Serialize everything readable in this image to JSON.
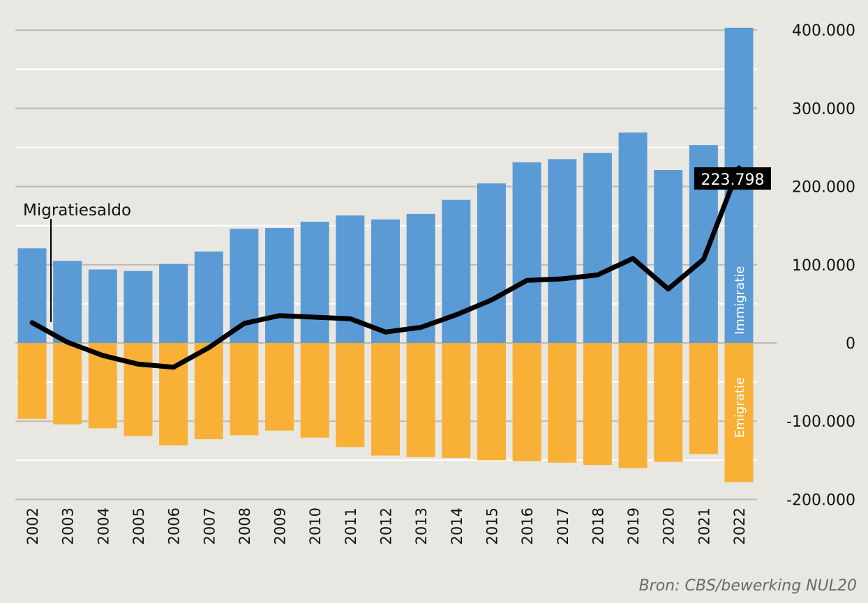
{
  "colors": {
    "background": "#e9e7e2",
    "immigration": "#5b9bd5",
    "emigration": "#f8b136",
    "balance_line": "#000000",
    "grid": "#ffffff",
    "axis_grid": "#bdbab4"
  },
  "chart_data": {
    "type": "bar",
    "title": "",
    "xlabel": "",
    "ylabel": "",
    "ylim": [
      -200000,
      400000
    ],
    "y_ticks": [
      400000,
      300000,
      200000,
      100000,
      0,
      -100000,
      -200000
    ],
    "y_tick_labels": [
      "400.000",
      "300.000",
      "200.000",
      "100.000",
      "0",
      "-100.000",
      "-200.000"
    ],
    "categories": [
      "2002",
      "2003",
      "2004",
      "2005",
      "2006",
      "2007",
      "2008",
      "2009",
      "2010",
      "2011",
      "2012",
      "2013",
      "2014",
      "2015",
      "2016",
      "2017",
      "2018",
      "2019",
      "2020",
      "2021",
      "2022"
    ],
    "series": [
      {
        "name": "Immigratie",
        "kind": "bar",
        "values": [
          121000,
          105000,
          94000,
          92000,
          101000,
          117000,
          146000,
          147000,
          155000,
          163000,
          158000,
          165000,
          183000,
          204000,
          231000,
          235000,
          243000,
          269000,
          221000,
          253000,
          403000
        ]
      },
      {
        "name": "Emigratie",
        "kind": "bar",
        "values": [
          -97000,
          -104000,
          -109000,
          -119000,
          -131000,
          -123000,
          -118000,
          -112000,
          -121000,
          -133000,
          -144000,
          -146000,
          -147000,
          -150000,
          -151000,
          -153000,
          -156000,
          -160000,
          -152000,
          -142000,
          -178000
        ]
      },
      {
        "name": "Migratiesaldo",
        "kind": "line",
        "values": [
          26000,
          1000,
          -16000,
          -27000,
          -31000,
          -6000,
          25000,
          35000,
          33000,
          31000,
          14000,
          20000,
          36000,
          55000,
          80000,
          82000,
          87000,
          108000,
          69000,
          107000,
          223798
        ]
      }
    ],
    "callout": {
      "year": "2022",
      "label": "223.798"
    },
    "legend": {
      "immigration_label": "Immigratie",
      "emigration_label": "Emigratie"
    },
    "annotations": {
      "line_label": "Migratiesaldo"
    },
    "grid": true
  },
  "source": "Bron: CBS/bewerking NUL20"
}
